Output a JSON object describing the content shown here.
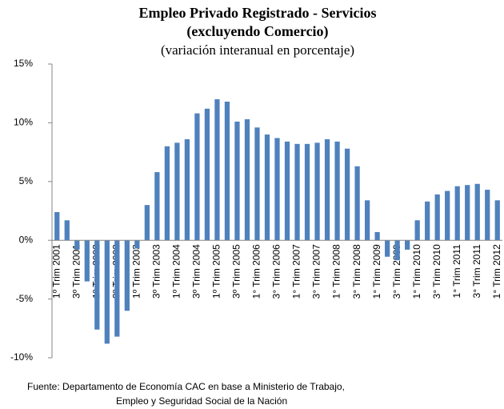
{
  "chart_data": {
    "type": "bar",
    "title": [
      "Empleo Privado Registrado - Servicios",
      "(excluyendo Comercio)"
    ],
    "subtitle": "(variación interanual en porcentaje)",
    "source": [
      "Fuente: Departamento de Economía CAC en base a Ministerio de Trabajo,",
      "Empleo y Seguridad Social de la Nación"
    ],
    "categories": [
      "1º Trim 2001",
      null,
      "3º Trim 2001",
      null,
      "1º Trim 2002",
      null,
      "3º Trim 2002",
      null,
      "1º Trim 2003",
      null,
      "3º Trim 2003",
      null,
      "1º Trim 2004",
      null,
      "3º Trim 2004",
      null,
      "1º Trim 2005",
      null,
      "3º Trim 2005",
      null,
      "1° Trim 2006",
      null,
      "3° Trim 2006",
      null,
      "1° Trim 2007",
      null,
      "3° Trim 2007",
      null,
      "1° Trim 2008",
      null,
      "3° Trim 2008",
      null,
      "1° Trim 2009",
      null,
      "3° Trim 2009",
      null,
      "1° Trim 2010",
      null,
      "3° Trim 2010",
      null,
      "1° Trim 2011",
      null,
      "3° Trim 2011",
      null,
      "1° Trim 2012"
    ],
    "values": [
      2.4,
      1.7,
      -0.8,
      -3.5,
      -7.6,
      -8.8,
      -8.2,
      -6.0,
      -0.7,
      3.0,
      5.8,
      8.0,
      8.3,
      8.6,
      10.8,
      11.2,
      12.0,
      11.8,
      10.1,
      10.3,
      9.6,
      9.0,
      8.7,
      8.4,
      8.2,
      8.2,
      8.3,
      8.6,
      8.4,
      7.8,
      6.3,
      3.4,
      0.7,
      -1.4,
      -1.7,
      -0.8,
      1.7,
      3.3,
      3.9,
      4.2,
      4.6,
      4.7,
      4.8,
      4.3,
      3.4
    ],
    "color": "#4f81bd",
    "ylim": [
      -10,
      15
    ],
    "yticks": [
      {
        "value": -10,
        "label": "-10%"
      },
      {
        "value": -5,
        "label": "-5%"
      },
      {
        "value": 0,
        "label": "0%"
      },
      {
        "value": 5,
        "label": "5%"
      },
      {
        "value": 10,
        "label": "10%"
      },
      {
        "value": 15,
        "label": "15%"
      }
    ],
    "grid": false
  }
}
